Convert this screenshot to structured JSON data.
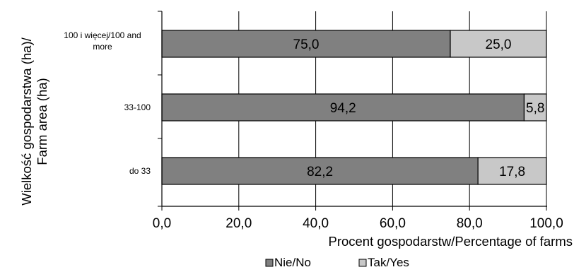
{
  "chart_data": {
    "type": "bar",
    "orientation": "horizontal",
    "stacked": true,
    "categories": [
      "100 i więcej/100 and more",
      "33-100",
      "do 33"
    ],
    "category_lines": [
      [
        "100 i więcej/100 and",
        "more"
      ],
      [
        "33-100"
      ],
      [
        "do 33"
      ]
    ],
    "series": [
      {
        "name": "Nie/No",
        "values": [
          75.0,
          94.2,
          82.2
        ],
        "labels": [
          "75,0",
          "94,2",
          "82,2"
        ],
        "color": "#808080"
      },
      {
        "name": "Tak/Yes",
        "values": [
          25.0,
          5.8,
          17.8
        ],
        "labels": [
          "25,0",
          "5,8",
          "17,8"
        ],
        "color": "#c8c8c8"
      }
    ],
    "xlim": [
      0,
      100
    ],
    "xticks": [
      0,
      20,
      40,
      60,
      80,
      100
    ],
    "xtick_labels": [
      "0,0",
      "20,0",
      "40,0",
      "60,0",
      "80,0",
      "100,0"
    ],
    "xlabel": "Procent gospodarstw/Percentage of farms",
    "ylabel_lines": [
      "Wielkość gospodarstwa (ha)/",
      "Farm area (ha)"
    ],
    "grid": "vertical",
    "legend_position": "bottom-center"
  }
}
